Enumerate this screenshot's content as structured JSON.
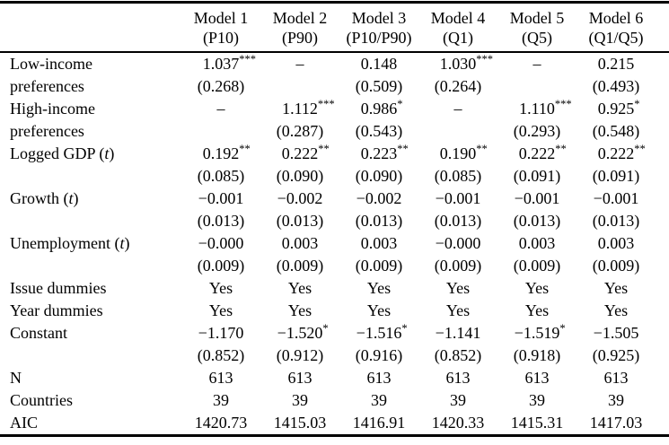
{
  "table": {
    "header": {
      "label_column": "",
      "columns": [
        {
          "name": "Model 1",
          "spec": "(P10)"
        },
        {
          "name": "Model 2",
          "spec": "(P90)"
        },
        {
          "name": "Model 3",
          "spec": "(P10/P90)"
        },
        {
          "name": "Model 4",
          "spec": "(Q1)"
        },
        {
          "name": "Model 5",
          "spec": "(Q5)"
        },
        {
          "name": "Model 6",
          "spec": "(Q1/Q5)"
        }
      ]
    },
    "rows": [
      {
        "label": "Low-income",
        "cells": [
          {
            "v": "1.037",
            "sup": "***"
          },
          {
            "v": "–"
          },
          {
            "v": "0.148"
          },
          {
            "v": "1.030",
            "sup": "***"
          },
          {
            "v": "–"
          },
          {
            "v": "0.215"
          }
        ]
      },
      {
        "label": "preferences",
        "cells": [
          {
            "v": "(0.268)"
          },
          {
            "v": ""
          },
          {
            "v": "(0.509)"
          },
          {
            "v": "(0.264)"
          },
          {
            "v": ""
          },
          {
            "v": "(0.493)"
          }
        ]
      },
      {
        "label": "High-income",
        "cells": [
          {
            "v": "–"
          },
          {
            "v": "1.112",
            "sup": "***"
          },
          {
            "v": "0.986",
            "sup": "*"
          },
          {
            "v": "–"
          },
          {
            "v": "1.110",
            "sup": "***"
          },
          {
            "v": "0.925",
            "sup": "*"
          }
        ]
      },
      {
        "label": "preferences",
        "cells": [
          {
            "v": ""
          },
          {
            "v": "(0.287)"
          },
          {
            "v": "(0.543)"
          },
          {
            "v": ""
          },
          {
            "v": "(0.293)"
          },
          {
            "v": "(0.548)"
          }
        ]
      },
      {
        "label": "Logged GDP (t)",
        "cells": [
          {
            "v": "0.192",
            "sup": "**"
          },
          {
            "v": "0.222",
            "sup": "**"
          },
          {
            "v": "0.223",
            "sup": "**"
          },
          {
            "v": "0.190",
            "sup": "**"
          },
          {
            "v": "0.222",
            "sup": "**"
          },
          {
            "v": "0.222",
            "sup": "**"
          }
        ]
      },
      {
        "label": "",
        "cells": [
          {
            "v": "(0.085)"
          },
          {
            "v": "(0.090)"
          },
          {
            "v": "(0.090)"
          },
          {
            "v": "(0.085)"
          },
          {
            "v": "(0.091)"
          },
          {
            "v": "(0.091)"
          }
        ]
      },
      {
        "label": "Growth (t)",
        "cells": [
          {
            "v": "−0.001"
          },
          {
            "v": "−0.002"
          },
          {
            "v": "−0.002"
          },
          {
            "v": "−0.001"
          },
          {
            "v": "−0.001"
          },
          {
            "v": "−0.001"
          }
        ]
      },
      {
        "label": "",
        "cells": [
          {
            "v": "(0.013)"
          },
          {
            "v": "(0.013)"
          },
          {
            "v": "(0.013)"
          },
          {
            "v": "(0.013)"
          },
          {
            "v": "(0.013)"
          },
          {
            "v": "(0.013)"
          }
        ]
      },
      {
        "label": "Unemployment (t)",
        "cells": [
          {
            "v": "−0.000"
          },
          {
            "v": "0.003"
          },
          {
            "v": "0.003"
          },
          {
            "v": "−0.000"
          },
          {
            "v": "0.003"
          },
          {
            "v": "0.003"
          }
        ]
      },
      {
        "label": "",
        "cells": [
          {
            "v": "(0.009)"
          },
          {
            "v": "(0.009)"
          },
          {
            "v": "(0.009)"
          },
          {
            "v": "(0.009)"
          },
          {
            "v": "(0.009)"
          },
          {
            "v": "(0.009)"
          }
        ]
      },
      {
        "label": "Issue dummies",
        "cells": [
          {
            "v": "Yes"
          },
          {
            "v": "Yes"
          },
          {
            "v": "Yes"
          },
          {
            "v": "Yes"
          },
          {
            "v": "Yes"
          },
          {
            "v": "Yes"
          }
        ]
      },
      {
        "label": "Year dummies",
        "cells": [
          {
            "v": "Yes"
          },
          {
            "v": "Yes"
          },
          {
            "v": "Yes"
          },
          {
            "v": "Yes"
          },
          {
            "v": "Yes"
          },
          {
            "v": "Yes"
          }
        ]
      },
      {
        "label": "Constant",
        "cells": [
          {
            "v": "−1.170"
          },
          {
            "v": "−1.520",
            "sup": "*"
          },
          {
            "v": "−1.516",
            "sup": "*"
          },
          {
            "v": "−1.141"
          },
          {
            "v": "−1.519",
            "sup": "*"
          },
          {
            "v": "−1.505"
          }
        ]
      },
      {
        "label": "",
        "cells": [
          {
            "v": "(0.852)"
          },
          {
            "v": "(0.912)"
          },
          {
            "v": "(0.916)"
          },
          {
            "v": "(0.852)"
          },
          {
            "v": "(0.918)"
          },
          {
            "v": "(0.925)"
          }
        ]
      },
      {
        "label": "N",
        "cells": [
          {
            "v": "613"
          },
          {
            "v": "613"
          },
          {
            "v": "613"
          },
          {
            "v": "613"
          },
          {
            "v": "613"
          },
          {
            "v": "613"
          }
        ]
      },
      {
        "label": "Countries",
        "cells": [
          {
            "v": "39"
          },
          {
            "v": "39"
          },
          {
            "v": "39"
          },
          {
            "v": "39"
          },
          {
            "v": "39"
          },
          {
            "v": "39"
          }
        ]
      },
      {
        "label": "AIC",
        "cells": [
          {
            "v": "1420.73"
          },
          {
            "v": "1415.03"
          },
          {
            "v": "1416.91"
          },
          {
            "v": "1420.33"
          },
          {
            "v": "1415.31"
          },
          {
            "v": "1417.03"
          }
        ]
      }
    ]
  }
}
